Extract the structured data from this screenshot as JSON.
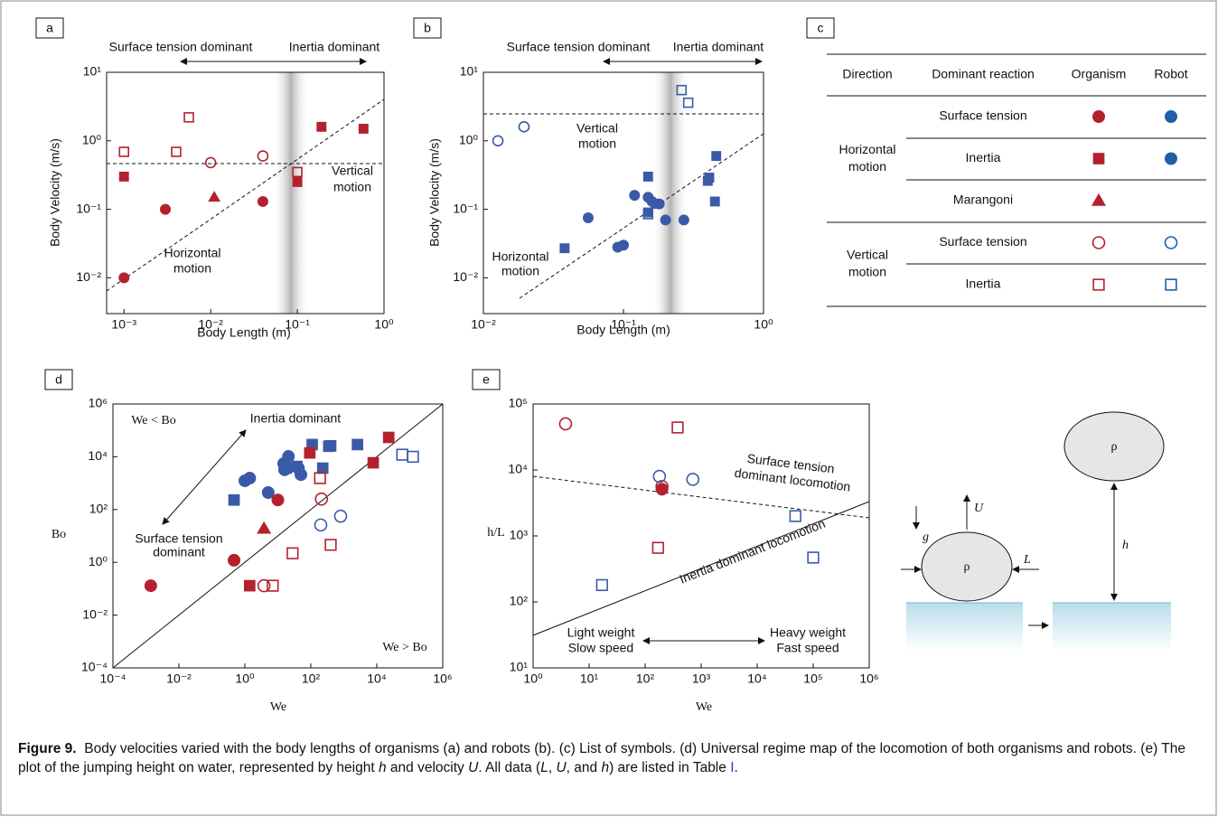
{
  "chart_data": [
    {
      "type": "scatter",
      "panel": "a",
      "xlabel": "Body Length (m)",
      "ylabel": "Body Velocity (m/s)",
      "log_x": true,
      "log_y": true,
      "xlim": [
        0.00063,
        1
      ],
      "ylim": [
        0.003,
        10
      ],
      "xticks": [
        {
          "value": 0.001,
          "label": "10⁻³"
        },
        {
          "value": 0.01,
          "label": "10⁻²"
        },
        {
          "value": 0.1,
          "label": "10⁻¹"
        },
        {
          "value": 1,
          "label": "10⁰"
        }
      ],
      "yticks": [
        {
          "value": 0.01,
          "label": "10⁻²"
        },
        {
          "value": 0.1,
          "label": "10⁻¹"
        },
        {
          "value": 1,
          "label": "10⁰"
        },
        {
          "value": 10,
          "label": "10¹"
        }
      ],
      "annotations": [
        "Surface tension dominant",
        "Inertia dominant",
        "Vertical",
        "motion",
        "Horizontal",
        "motion"
      ],
      "series": [
        {
          "color": "#b5202e",
          "marker": "circle",
          "filled": true,
          "x": [
            0.001,
            0.003,
            0.04
          ],
          "values": [
            0.01,
            0.1,
            0.13
          ]
        },
        {
          "color": "#b5202e",
          "marker": "triangle",
          "filled": true,
          "x": [
            0.011
          ],
          "values": [
            0.15
          ]
        },
        {
          "color": "#b5202e",
          "marker": "square",
          "filled": true,
          "x": [
            0.001,
            0.1,
            0.19,
            0.58
          ],
          "values": [
            0.3,
            0.25,
            1.6,
            1.5
          ]
        },
        {
          "color": "#b5202e",
          "marker": "circle",
          "filled": false,
          "x": [
            0.01,
            0.04
          ],
          "values": [
            0.48,
            0.6
          ]
        },
        {
          "color": "#b5202e",
          "marker": "square",
          "filled": false,
          "x": [
            0.001,
            0.004,
            0.0056,
            0.1
          ],
          "values": [
            0.69,
            0.69,
            2.2,
            0.35
          ]
        }
      ]
    },
    {
      "type": "scatter",
      "panel": "b",
      "xlabel": "Body Length (m)",
      "ylabel": "Body Velocity (m/s)",
      "log_x": true,
      "log_y": true,
      "xlim": [
        0.01,
        1
      ],
      "ylim": [
        0.003,
        10
      ],
      "xticks": [
        {
          "value": 0.01,
          "label": "10⁻²"
        },
        {
          "value": 0.1,
          "label": "10⁻¹"
        },
        {
          "value": 1,
          "label": "10⁰"
        }
      ],
      "yticks": [
        {
          "value": 0.01,
          "label": "10⁻²"
        },
        {
          "value": 0.1,
          "label": "10⁻¹"
        },
        {
          "value": 1,
          "label": "10⁰"
        },
        {
          "value": 10,
          "label": "10¹"
        }
      ],
      "annotations": [
        "Surface tension dominant",
        "Inertia dominant",
        "Vertical",
        "motion",
        "Horizontal",
        "motion"
      ],
      "series": [
        {
          "color": "#3a5aa8",
          "marker": "circle",
          "filled": true,
          "x": [
            0.056,
            0.091,
            0.1,
            0.12,
            0.15,
            0.16,
            0.18,
            0.2,
            0.27
          ],
          "values": [
            0.075,
            0.028,
            0.03,
            0.16,
            0.15,
            0.13,
            0.12,
            0.07,
            0.07
          ]
        },
        {
          "color": "#3a5aa8",
          "marker": "square",
          "filled": true,
          "x": [
            0.038,
            0.15,
            0.15,
            0.17,
            0.4,
            0.41,
            0.45,
            0.46
          ],
          "values": [
            0.027,
            0.3,
            0.09,
            0.12,
            0.26,
            0.29,
            0.13,
            0.6
          ]
        },
        {
          "color": "#3a5aa8",
          "marker": "circle",
          "filled": false,
          "x": [
            0.0127,
            0.0195
          ],
          "values": [
            1.0,
            1.6
          ]
        },
        {
          "color": "#3a5aa8",
          "marker": "square",
          "filled": false,
          "x": [
            0.15,
            0.26,
            0.29
          ],
          "values": [
            0.085,
            5.5,
            3.6
          ]
        }
      ]
    },
    {
      "type": "scatter",
      "panel": "d",
      "xlabel": "We",
      "ylabel": "Bo",
      "log_x": true,
      "log_y": true,
      "xlim": [
        0.0001,
        1000000
      ],
      "ylim": [
        0.0001,
        1000000
      ],
      "xticks": [
        {
          "value": 0.0001,
          "label": "10⁻⁴"
        },
        {
          "value": 0.01,
          "label": "10⁻²"
        },
        {
          "value": 1,
          "label": "10⁰"
        },
        {
          "value": 100,
          "label": "10²"
        },
        {
          "value": 10000,
          "label": "10⁴"
        },
        {
          "value": 1000000,
          "label": "10⁶"
        }
      ],
      "yticks": [
        {
          "value": 0.0001,
          "label": "10⁻⁴"
        },
        {
          "value": 0.01,
          "label": "10⁻²"
        },
        {
          "value": 1,
          "label": "10⁰"
        },
        {
          "value": 100,
          "label": "10²"
        },
        {
          "value": 10000,
          "label": "10⁴"
        },
        {
          "value": 1000000,
          "label": "10⁶"
        }
      ],
      "annotations": [
        "We < Bo",
        "Inertia dominant",
        "Surface tension",
        "dominant",
        "We > Bo"
      ],
      "series": [
        {
          "color": "#3a5aa8",
          "marker": "circle",
          "filled": true,
          "x": [
            1,
            1.4,
            5.1,
            15,
            21,
            42,
            50,
            16
          ],
          "values": [
            1230,
            1550,
            440,
            5500,
            10300,
            3700,
            2100,
            3200
          ]
        },
        {
          "color": "#3a5aa8",
          "marker": "square",
          "filled": true,
          "x": [
            0.47,
            18,
            38,
            110,
            230,
            350,
            2600,
            400
          ],
          "values": [
            230,
            3700,
            4300,
            29000,
            3700,
            25000,
            29000,
            26000
          ]
        },
        {
          "color": "#3a5aa8",
          "marker": "circle",
          "filled": false,
          "x": [
            200,
            800
          ],
          "values": [
            26,
            56
          ]
        },
        {
          "color": "#3a5aa8",
          "marker": "square",
          "filled": false,
          "x": [
            59000,
            125000
          ],
          "values": [
            12000,
            10000
          ]
        },
        {
          "color": "#b5202e",
          "marker": "circle",
          "filled": true,
          "x": [
            0.0014,
            0.47,
            10
          ],
          "values": [
            0.13,
            1.2,
            230
          ]
        },
        {
          "color": "#b5202e",
          "marker": "triangle",
          "filled": true,
          "x": [
            3.8
          ],
          "values": [
            19
          ]
        },
        {
          "color": "#b5202e",
          "marker": "square",
          "filled": true,
          "x": [
            1.4,
            93,
            7800,
            23000
          ],
          "values": [
            0.13,
            14000,
            5900,
            54000
          ]
        },
        {
          "color": "#b5202e",
          "marker": "circle",
          "filled": false,
          "x": [
            3.8,
            210
          ],
          "values": [
            0.13,
            250
          ]
        },
        {
          "color": "#b5202e",
          "marker": "square",
          "filled": false,
          "x": [
            7,
            190,
            28,
            400
          ],
          "values": [
            0.13,
            1550,
            2.2,
            4.6
          ]
        }
      ]
    },
    {
      "type": "scatter",
      "panel": "e",
      "xlabel": "We",
      "ylabel": "h/L",
      "log_x": true,
      "log_y": true,
      "xlim": [
        1,
        1000000
      ],
      "ylim": [
        10,
        100000
      ],
      "xticks": [
        {
          "value": 1,
          "label": "10⁰"
        },
        {
          "value": 10,
          "label": "10¹"
        },
        {
          "value": 100,
          "label": "10²"
        },
        {
          "value": 1000,
          "label": "10³"
        },
        {
          "value": 10000,
          "label": "10⁴"
        },
        {
          "value": 100000,
          "label": "10⁵"
        },
        {
          "value": 1000000,
          "label": "10⁶"
        }
      ],
      "yticks": [
        {
          "value": 10,
          "label": "10¹"
        },
        {
          "value": 100,
          "label": "10²"
        },
        {
          "value": 1000,
          "label": "10³"
        },
        {
          "value": 10000,
          "label": "10⁴"
        },
        {
          "value": 100000,
          "label": "10⁵"
        }
      ],
      "annotations": [
        "Surface tension",
        "dominant locomotion",
        "Inertia dominant locomotion",
        "Light weight",
        "Slow speed",
        "Heavy weight",
        "Fast speed"
      ],
      "series": [
        {
          "color": "#b5202e",
          "marker": "circle",
          "filled": false,
          "x": [
            3.8,
            200
          ],
          "values": [
            50000,
            5600
          ]
        },
        {
          "color": "#b5202e",
          "marker": "circle",
          "filled": true,
          "x": [
            200
          ],
          "values": [
            5100
          ]
        },
        {
          "color": "#3a5aa8",
          "marker": "circle",
          "filled": false,
          "x": [
            180,
            710
          ],
          "values": [
            8000,
            7200
          ]
        },
        {
          "color": "#b5202e",
          "marker": "square",
          "filled": false,
          "x": [
            380,
            170
          ],
          "values": [
            44000,
            660
          ]
        },
        {
          "color": "#3a5aa8",
          "marker": "square",
          "filled": false,
          "x": [
            17,
            48000,
            100000
          ],
          "values": [
            180,
            2000,
            470
          ]
        }
      ]
    }
  ],
  "table": {
    "panel": "c",
    "header": [
      "Direction",
      "Dominant reaction",
      "Organism",
      "Robot"
    ],
    "groups": [
      {
        "direction": [
          "Horizontal",
          "motion"
        ],
        "rows": [
          {
            "reaction": "Surface tension",
            "organism": {
              "marker": "circle",
              "filled": true,
              "color": "#b5202e"
            },
            "robot": {
              "marker": "circle",
              "filled": true,
              "color": "#1f5fa8"
            }
          },
          {
            "reaction": "Inertia",
            "organism": {
              "marker": "square",
              "filled": true,
              "color": "#b5202e"
            },
            "robot": {
              "marker": "circle",
              "filled": true,
              "color": "#1f5fa8"
            }
          },
          {
            "reaction": "Marangoni",
            "organism": {
              "marker": "triangle",
              "filled": true,
              "color": "#b5202e"
            },
            "robot": null
          }
        ]
      },
      {
        "direction": [
          "Vertical",
          "motion"
        ],
        "rows": [
          {
            "reaction": "Surface tension",
            "organism": {
              "marker": "circle",
              "filled": false,
              "color": "#b5202e"
            },
            "robot": {
              "marker": "circle",
              "filled": false,
              "color": "#1f5fa8"
            }
          },
          {
            "reaction": "Inertia",
            "organism": {
              "marker": "square",
              "filled": false,
              "color": "#b5202e"
            },
            "robot": {
              "marker": "square",
              "filled": false,
              "color": "#1f5fa8"
            }
          }
        ]
      }
    ]
  },
  "diagram": {
    "gravity": "g",
    "velocity": "U",
    "density": "ρ",
    "length": "L",
    "height": "h"
  },
  "caption": {
    "label": "Figure 9.",
    "parts": [
      "Body velocities varied with the body lengths of organisms (a) and robots (b). (c) List of symbols. (d) Universal regime map of the locomotion of both organisms and robots. (e) The plot of the jumping height on water, represented by height ",
      "h",
      " and velocity ",
      "U",
      ". All data (",
      "L",
      ", ",
      "U",
      ", and ",
      "h",
      ") are listed in Table ",
      "I",
      "."
    ]
  }
}
